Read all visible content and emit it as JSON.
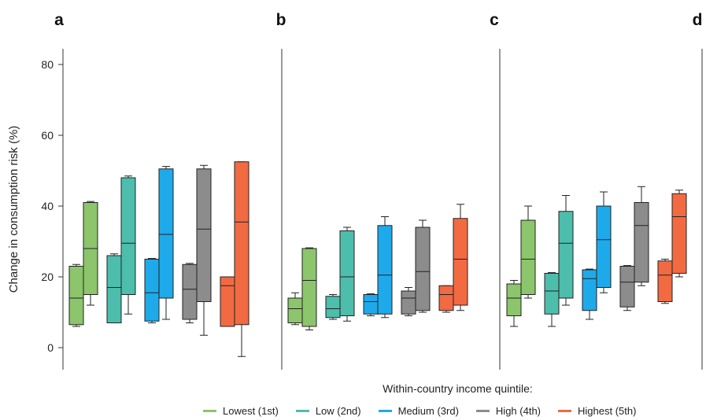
{
  "chart_data": {
    "type": "box",
    "ylabel": "Change in consumption risk (%)",
    "ylim": [
      -7,
      87
    ],
    "yticks": [
      0,
      20,
      40,
      60,
      80
    ],
    "legend_title": "Within-country income quintile:",
    "legend": [
      {
        "name": "Lowest (1st)",
        "color": "#8cc56b"
      },
      {
        "name": "Low (2nd)",
        "color": "#4dbdac"
      },
      {
        "name": "Medium (3rd)",
        "color": "#1eaaea"
      },
      {
        "name": "High (4th)",
        "color": "#8c8c8c"
      },
      {
        "name": "Highest (5th)",
        "color": "#f26a42"
      }
    ],
    "panels": [
      {
        "label": "a",
        "boxes": [
          {
            "quintile": 0,
            "min": 6,
            "q1": 6.5,
            "median": 14,
            "q3": 23,
            "max": 23.5
          },
          {
            "quintile": 0,
            "min": 12,
            "q1": 15,
            "median": 28,
            "q3": 41,
            "max": 41.3
          },
          {
            "quintile": 1,
            "min": 7,
            "q1": 7,
            "median": 17,
            "q3": 26,
            "max": 26.5
          },
          {
            "quintile": 1,
            "min": 9.5,
            "q1": 15,
            "median": 29.5,
            "q3": 48,
            "max": 48.5
          },
          {
            "quintile": 2,
            "min": 7,
            "q1": 7.5,
            "median": 15.5,
            "q3": 25,
            "max": 25.2
          },
          {
            "quintile": 2,
            "min": 8,
            "q1": 14,
            "median": 32,
            "q3": 50.5,
            "max": 51.2
          },
          {
            "quintile": 3,
            "min": 7,
            "q1": 8,
            "median": 16.5,
            "q3": 23.5,
            "max": 23.8
          },
          {
            "quintile": 3,
            "min": 3.5,
            "q1": 13,
            "median": 33.5,
            "q3": 50.5,
            "max": 51.5
          },
          {
            "quintile": 4,
            "min": 6,
            "q1": 6,
            "median": 17.5,
            "q3": 20,
            "max": 20
          },
          {
            "quintile": 4,
            "min": -2.5,
            "q1": 6.5,
            "median": 35.5,
            "q3": 52.5,
            "max": 52.5
          }
        ]
      },
      {
        "label": "b",
        "boxes": [
          {
            "quintile": 0,
            "min": 6.5,
            "q1": 7,
            "median": 11,
            "q3": 14,
            "max": 15.5
          },
          {
            "quintile": 0,
            "min": 5,
            "q1": 6,
            "median": 19,
            "q3": 28,
            "max": 28.2
          },
          {
            "quintile": 1,
            "min": 8,
            "q1": 8.5,
            "median": 11,
            "q3": 14.5,
            "max": 15
          },
          {
            "quintile": 1,
            "min": 7.5,
            "q1": 9,
            "median": 20,
            "q3": 33,
            "max": 34
          },
          {
            "quintile": 2,
            "min": 9,
            "q1": 9.5,
            "median": 13,
            "q3": 15,
            "max": 15.2
          },
          {
            "quintile": 2,
            "min": 8.5,
            "q1": 9.5,
            "median": 20.5,
            "q3": 34.5,
            "max": 37
          },
          {
            "quintile": 3,
            "min": 9,
            "q1": 9.5,
            "median": 14,
            "q3": 16,
            "max": 17
          },
          {
            "quintile": 3,
            "min": 10,
            "q1": 10.5,
            "median": 21.5,
            "q3": 34,
            "max": 36
          },
          {
            "quintile": 4,
            "min": 10,
            "q1": 10.5,
            "median": 15,
            "q3": 17.5,
            "max": 17.5
          },
          {
            "quintile": 4,
            "min": 10.5,
            "q1": 12,
            "median": 25,
            "q3": 36.5,
            "max": 40.5
          }
        ]
      },
      {
        "label": "c",
        "boxes": [
          {
            "quintile": 0,
            "min": 6,
            "q1": 9,
            "median": 14,
            "q3": 18,
            "max": 19
          },
          {
            "quintile": 0,
            "min": 14,
            "q1": 15,
            "median": 25,
            "q3": 36,
            "max": 40
          },
          {
            "quintile": 1,
            "min": 6,
            "q1": 9.5,
            "median": 16,
            "q3": 21,
            "max": 21.2
          },
          {
            "quintile": 1,
            "min": 12,
            "q1": 14,
            "median": 29.5,
            "q3": 38.5,
            "max": 43
          },
          {
            "quintile": 2,
            "min": 8,
            "q1": 10.5,
            "median": 19.5,
            "q3": 22,
            "max": 22.2
          },
          {
            "quintile": 2,
            "min": 15.5,
            "q1": 17,
            "median": 30.5,
            "q3": 40,
            "max": 44
          },
          {
            "quintile": 3,
            "min": 10.5,
            "q1": 11.5,
            "median": 18.5,
            "q3": 23,
            "max": 23.2
          },
          {
            "quintile": 3,
            "min": 17.5,
            "q1": 18.5,
            "median": 34.5,
            "q3": 41,
            "max": 45.5
          },
          {
            "quintile": 4,
            "min": 12.5,
            "q1": 13,
            "median": 20.5,
            "q3": 24.5,
            "max": 25
          },
          {
            "quintile": 4,
            "min": 20,
            "q1": 21,
            "median": 37,
            "q3": 43.5,
            "max": 44.5
          }
        ]
      },
      {
        "label": "d",
        "boxes": []
      }
    ]
  }
}
